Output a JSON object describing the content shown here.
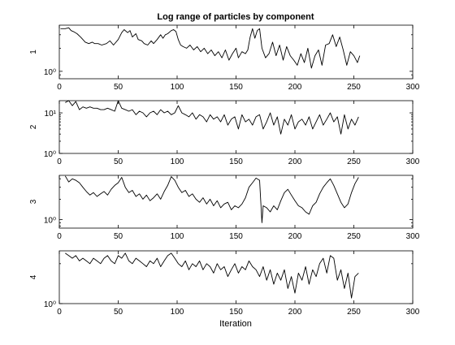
{
  "chart_data": [
    {
      "type": "line",
      "title": "Log range of particles by component",
      "ylabel": "1",
      "xlabel": "",
      "xlim": [
        0,
        300
      ],
      "yscale": "log",
      "ylim": [
        0.8,
        4.0
      ],
      "xticks": [
        0,
        50,
        100,
        150,
        200,
        250,
        300
      ],
      "yticks": [
        {
          "value": 1,
          "label": "10⁰"
        }
      ],
      "series": [
        {
          "x": [
            1,
            5,
            8,
            10,
            12,
            15,
            18,
            20,
            22,
            25,
            28,
            30,
            33,
            36,
            40,
            43,
            46,
            50,
            53,
            55,
            58,
            60,
            62,
            65,
            67,
            70,
            72,
            75,
            78,
            80,
            83,
            86,
            88,
            90,
            92,
            95,
            97,
            99,
            101,
            103,
            105,
            108,
            111,
            114,
            117,
            120,
            123,
            126,
            129,
            132,
            135,
            138,
            141,
            144,
            147,
            150,
            152,
            155,
            158,
            160,
            162,
            164,
            166,
            168,
            170,
            172,
            175,
            178,
            181,
            184,
            187,
            190,
            193,
            196,
            199,
            202,
            205,
            208,
            211,
            214,
            217,
            220,
            223,
            226,
            229,
            232,
            235,
            238,
            241,
            244,
            247,
            250,
            253,
            255
          ],
          "values": [
            3.6,
            3.6,
            3.7,
            3.4,
            3.3,
            3.1,
            2.8,
            2.6,
            2.4,
            2.3,
            2.4,
            2.3,
            2.3,
            2.2,
            2.3,
            2.5,
            2.2,
            2.6,
            3.2,
            3.5,
            3.2,
            3.4,
            2.8,
            3.1,
            2.6,
            2.5,
            2.3,
            2.2,
            2.5,
            2.3,
            2.6,
            3.0,
            2.7,
            3.0,
            3.1,
            3.4,
            3.5,
            3.3,
            2.6,
            2.2,
            2.1,
            2.0,
            2.2,
            1.9,
            2.1,
            1.8,
            2.0,
            1.7,
            1.9,
            1.6,
            1.8,
            1.5,
            1.9,
            1.4,
            1.7,
            2.0,
            1.5,
            1.8,
            1.7,
            1.9,
            2.8,
            3.6,
            2.7,
            3.4,
            3.6,
            2.0,
            1.5,
            1.7,
            2.4,
            1.6,
            2.2,
            1.4,
            2.1,
            1.6,
            1.4,
            1.2,
            1.7,
            1.3,
            2.0,
            1.1,
            1.6,
            1.9,
            1.2,
            2.2,
            2.3,
            3.0,
            2.1,
            2.8,
            1.9,
            1.2,
            1.8,
            1.6,
            1.3,
            1.6
          ]
        }
      ]
    },
    {
      "type": "line",
      "title": "",
      "ylabel": "2",
      "xlabel": "",
      "xlim": [
        0,
        300
      ],
      "yscale": "log",
      "ylim": [
        1,
        20
      ],
      "xticks": [
        0,
        50,
        100,
        150,
        200,
        250,
        300
      ],
      "yticks": [
        {
          "value": 1,
          "label": "10⁰"
        },
        {
          "value": 10,
          "label": "10¹"
        }
      ],
      "series": [
        {
          "x": [
            5,
            8,
            11,
            14,
            17,
            20,
            23,
            26,
            29,
            32,
            35,
            38,
            41,
            44,
            47,
            50,
            53,
            56,
            59,
            62,
            65,
            68,
            71,
            74,
            77,
            80,
            83,
            86,
            89,
            92,
            95,
            98,
            101,
            104,
            107,
            110,
            113,
            116,
            119,
            122,
            125,
            128,
            131,
            134,
            137,
            140,
            143,
            146,
            149,
            152,
            155,
            158,
            161,
            164,
            167,
            170,
            173,
            176,
            179,
            182,
            185,
            188,
            191,
            194,
            197,
            200,
            203,
            206,
            209,
            212,
            215,
            218,
            221,
            224,
            227,
            230,
            233,
            236,
            239,
            242,
            245,
            248,
            251,
            254
          ],
          "values": [
            18,
            20,
            15,
            19,
            12,
            14,
            13,
            14,
            13,
            13,
            12,
            12,
            13,
            12,
            11,
            20,
            13,
            12,
            11,
            12,
            9,
            11,
            10,
            8,
            10,
            11,
            9,
            12,
            10,
            11,
            9,
            10,
            15,
            10,
            9,
            8,
            10,
            7,
            9,
            8,
            6,
            9,
            7,
            8,
            6,
            9,
            5,
            7,
            8,
            4,
            9,
            6,
            7,
            5,
            8,
            9,
            4,
            6,
            10,
            5,
            8,
            3,
            7,
            5,
            9,
            4,
            6,
            7,
            5,
            8,
            4,
            6,
            9,
            5,
            7,
            10,
            6,
            8,
            3,
            9,
            4,
            7,
            5,
            8
          ]
        }
      ]
    },
    {
      "type": "line",
      "title": "",
      "ylabel": "3",
      "xlabel": "",
      "xlim": [
        0,
        300
      ],
      "yscale": "log",
      "ylim": [
        0.75,
        4.5
      ],
      "xticks": [
        0,
        50,
        100,
        150,
        200,
        250,
        300
      ],
      "yticks": [
        {
          "value": 1,
          "label": "10⁰"
        }
      ],
      "series": [
        {
          "x": [
            5,
            8,
            11,
            14,
            17,
            20,
            23,
            26,
            29,
            32,
            35,
            38,
            41,
            44,
            47,
            50,
            53,
            56,
            59,
            62,
            65,
            68,
            71,
            74,
            77,
            80,
            83,
            86,
            89,
            92,
            95,
            98,
            101,
            104,
            107,
            110,
            113,
            116,
            119,
            122,
            125,
            128,
            131,
            134,
            137,
            140,
            143,
            146,
            149,
            152,
            155,
            158,
            161,
            164,
            167,
            170,
            172,
            173,
            176,
            179,
            182,
            185,
            188,
            191,
            194,
            197,
            200,
            203,
            206,
            209,
            212,
            215,
            218,
            221,
            224,
            227,
            230,
            233,
            236,
            239,
            242,
            245,
            248,
            251,
            254
          ],
          "values": [
            4.4,
            3.6,
            4.0,
            3.8,
            3.5,
            3.0,
            2.6,
            2.3,
            2.5,
            2.2,
            2.4,
            2.6,
            2.3,
            2.8,
            3.2,
            3.5,
            4.2,
            3.0,
            2.5,
            2.7,
            2.2,
            2.4,
            2.0,
            2.3,
            1.9,
            2.1,
            2.4,
            2.0,
            2.6,
            3.2,
            4.3,
            3.8,
            3.0,
            2.5,
            2.7,
            2.2,
            2.4,
            2.0,
            1.8,
            2.1,
            1.7,
            2.0,
            1.6,
            1.9,
            1.5,
            1.7,
            1.8,
            1.4,
            1.6,
            1.5,
            1.7,
            2.1,
            3.0,
            3.5,
            4.1,
            3.8,
            0.9,
            1.6,
            1.5,
            1.3,
            1.6,
            1.4,
            1.9,
            2.5,
            2.8,
            2.3,
            1.9,
            1.6,
            1.5,
            1.3,
            1.2,
            1.6,
            1.8,
            2.4,
            3.0,
            3.5,
            4.0,
            3.2,
            2.4,
            1.8,
            1.5,
            1.7,
            2.5,
            3.4,
            4.2
          ]
        }
      ]
    },
    {
      "type": "line",
      "title": "",
      "ylabel": "4",
      "xlabel": "Iteration",
      "xlim": [
        0,
        300
      ],
      "yscale": "log",
      "ylim": [
        1,
        2.5
      ],
      "xticks": [
        0,
        50,
        100,
        150,
        200,
        250,
        300
      ],
      "yticks": [
        {
          "value": 1,
          "label": "10⁰"
        }
      ],
      "series": [
        {
          "x": [
            5,
            8,
            11,
            14,
            17,
            20,
            23,
            26,
            29,
            32,
            35,
            38,
            41,
            44,
            47,
            50,
            53,
            56,
            59,
            62,
            65,
            68,
            71,
            74,
            77,
            80,
            83,
            86,
            89,
            92,
            95,
            98,
            101,
            104,
            107,
            110,
            113,
            116,
            119,
            122,
            125,
            128,
            131,
            134,
            137,
            140,
            143,
            146,
            149,
            152,
            155,
            158,
            161,
            164,
            167,
            170,
            173,
            176,
            179,
            182,
            185,
            188,
            191,
            194,
            197,
            200,
            203,
            206,
            209,
            212,
            215,
            218,
            221,
            224,
            227,
            230,
            233,
            236,
            239,
            242,
            245,
            248,
            251,
            254
          ],
          "values": [
            2.4,
            2.3,
            2.2,
            2.3,
            2.1,
            2.2,
            2.1,
            2.0,
            2.2,
            2.1,
            2.0,
            2.2,
            2.3,
            2.1,
            2.0,
            2.3,
            2.2,
            2.4,
            2.1,
            2.0,
            2.2,
            2.1,
            2.0,
            1.9,
            2.1,
            2.0,
            2.2,
            1.9,
            2.1,
            2.3,
            2.4,
            2.2,
            2.0,
            1.9,
            2.1,
            1.8,
            2.0,
            1.9,
            2.1,
            1.8,
            2.0,
            1.9,
            1.7,
            2.0,
            1.8,
            1.9,
            1.6,
            1.8,
            2.0,
            1.7,
            1.9,
            1.8,
            2.1,
            1.9,
            1.8,
            1.6,
            1.9,
            1.5,
            1.8,
            1.4,
            1.7,
            1.5,
            1.8,
            1.3,
            1.6,
            1.2,
            1.7,
            1.5,
            1.9,
            1.4,
            1.8,
            1.6,
            2.0,
            2.2,
            1.7,
            2.3,
            2.2,
            1.5,
            1.8,
            1.3,
            1.7,
            1.1,
            1.6,
            1.7
          ]
        }
      ]
    }
  ]
}
